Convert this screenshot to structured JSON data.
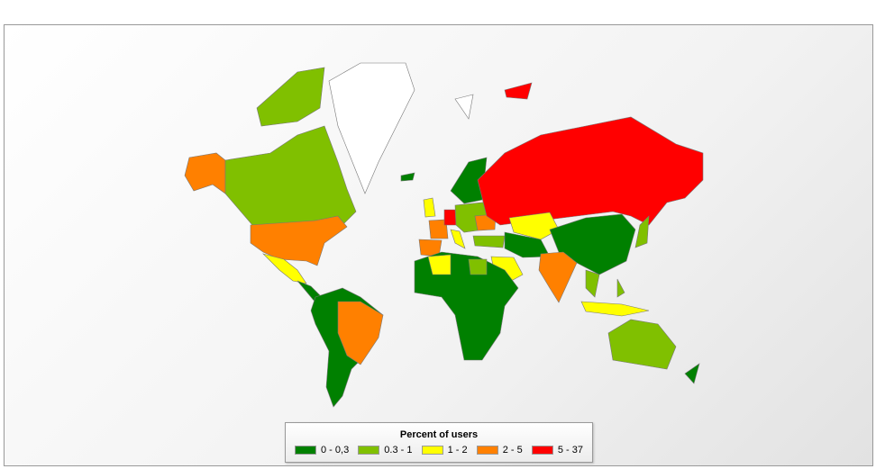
{
  "legend": {
    "title": "Percent of users",
    "classes": [
      {
        "label": "0 - 0,3",
        "color": "#008000"
      },
      {
        "label": "0.3 - 1",
        "color": "#80c000"
      },
      {
        "label": "1 - 2",
        "color": "#ffff00"
      },
      {
        "label": "2 - 5",
        "color": "#ff8000"
      },
      {
        "label": "5 - 37",
        "color": "#ff0000"
      }
    ]
  },
  "no_data_color": "#ffffff",
  "regions": [
    {
      "name": "Alaska (USA)",
      "class": 3
    },
    {
      "name": "Canada",
      "class": 1
    },
    {
      "name": "Canadian Arctic",
      "class": 1
    },
    {
      "name": "Greenland",
      "class": null
    },
    {
      "name": "United States",
      "class": 3
    },
    {
      "name": "Mexico",
      "class": 2
    },
    {
      "name": "Central America",
      "class": 0
    },
    {
      "name": "South America",
      "class": 0
    },
    {
      "name": "Brazil",
      "class": 3
    },
    {
      "name": "Iceland",
      "class": 0
    },
    {
      "name": "United Kingdom",
      "class": 2
    },
    {
      "name": "Scandinavia",
      "class": 0
    },
    {
      "name": "France",
      "class": 3
    },
    {
      "name": "Spain",
      "class": 3
    },
    {
      "name": "Germany",
      "class": 4
    },
    {
      "name": "Italy",
      "class": 2
    },
    {
      "name": "Eastern Europe",
      "class": 1
    },
    {
      "name": "Ukraine",
      "class": 3
    },
    {
      "name": "Turkey",
      "class": 1
    },
    {
      "name": "Russia",
      "class": 4
    },
    {
      "name": "Kazakhstan",
      "class": 2
    },
    {
      "name": "Central Asia",
      "class": 0
    },
    {
      "name": "China",
      "class": 0
    },
    {
      "name": "India",
      "class": 3
    },
    {
      "name": "Saudi Arabia",
      "class": 2
    },
    {
      "name": "Africa",
      "class": 0
    },
    {
      "name": "Algeria",
      "class": 2
    },
    {
      "name": "Egypt",
      "class": 1
    },
    {
      "name": "Japan",
      "class": 1
    },
    {
      "name": "Southeast Asia",
      "class": 1
    },
    {
      "name": "Indonesia",
      "class": 2
    },
    {
      "name": "Philippines",
      "class": 1
    },
    {
      "name": "Australia",
      "class": 1
    },
    {
      "name": "New Zealand",
      "class": 0
    },
    {
      "name": "Svalbard",
      "class": null
    },
    {
      "name": "Russian Arctic Islands",
      "class": 4
    }
  ]
}
